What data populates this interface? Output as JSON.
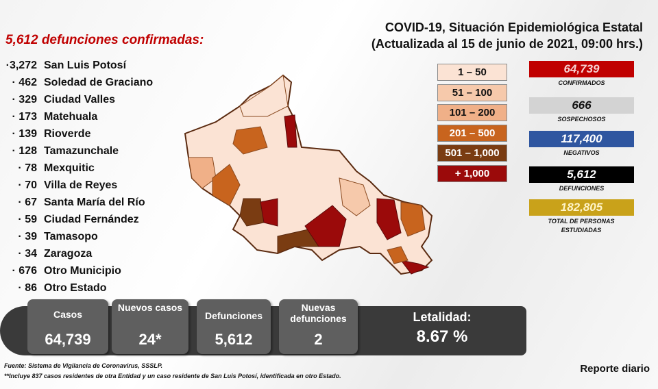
{
  "heading": "5,612 defunciones confirmadas:",
  "title": {
    "line1": "COVID-19, Situación Epidemiológica Estatal",
    "line2": "(Actualizada al 15 de junio de 2021, 09:00 hrs.)"
  },
  "municipalities": [
    {
      "n": "·3,272",
      "name": "San Luis Potosí"
    },
    {
      "n": "· 462",
      "name": "Soledad de Graciano"
    },
    {
      "n": "· 329",
      "name": "Ciudad Valles"
    },
    {
      "n": "· 173",
      "name": "Matehuala"
    },
    {
      "n": "· 139",
      "name": "Rioverde"
    },
    {
      "n": "· 128",
      "name": "Tamazunchale"
    },
    {
      "n": "· 78",
      "name": "Mexquitic"
    },
    {
      "n": "· 70",
      "name": "Villa de Reyes"
    },
    {
      "n": "· 67",
      "name": "Santa María del Río"
    },
    {
      "n": "· 59",
      "name": "Ciudad Fernández"
    },
    {
      "n": "· 39",
      "name": "Tamasopo"
    },
    {
      "n": "· 34",
      "name": "Zaragoza"
    },
    {
      "n": "· 676",
      "name": "Otro Municipio"
    },
    {
      "n": "· 86",
      "name": "Otro Estado"
    }
  ],
  "legend": [
    {
      "label": "1 – 50",
      "color": "#fbe3d4",
      "text": "#111"
    },
    {
      "label": "51 – 100",
      "color": "#f6c9ab",
      "text": "#111"
    },
    {
      "label": "101 – 200",
      "color": "#f0b088",
      "text": "#111"
    },
    {
      "label": "201 – 500",
      "color": "#c8641e",
      "text": "#fff"
    },
    {
      "label": "501 – 1,000",
      "color": "#7a3c12",
      "text": "#fff"
    },
    {
      "label": "+ 1,000",
      "color": "#9b0a0a",
      "text": "#fff"
    }
  ],
  "stats": [
    {
      "value": "64,739",
      "label": "CONFIRMADOS",
      "color": "#c00000",
      "text": "#f6d0d0"
    },
    {
      "value": "666",
      "label": "SOSPECHOSOS",
      "color": "#d3d3d3",
      "text": "#111"
    },
    {
      "value": "117,400",
      "label": "NEGATIVOS",
      "color": "#2f56a0",
      "text": "#fff"
    },
    {
      "value": "5,612",
      "label": "DEFUNCIONES",
      "color": "#000000",
      "text": "#fff"
    },
    {
      "value": "182,805",
      "label": "TOTAL DE PERSONAS ESTUDIADAS",
      "color": "#c9a21a",
      "text": "#fff4c8"
    }
  ],
  "summary": {
    "casos": {
      "label": "Casos",
      "value": "64,739"
    },
    "nuevos": {
      "label": "Nuevos casos",
      "value": "24*"
    },
    "defunciones": {
      "label": "Defunciones",
      "value": "5,612"
    },
    "nuevas_def": {
      "label": "Nuevas defunciones",
      "value": "2"
    },
    "letalidad": {
      "label": "Letalidad:",
      "value": "8.67 %"
    }
  },
  "footer": {
    "source": "Fuente: Sistema de Vigilancia de Coronavirus, SSSLP.",
    "note": "**Incluye 837 casos residentes de otra Entidad y un caso residente de San Luis Potosí, identificada en otro Estado.",
    "report": "Reporte diario"
  }
}
